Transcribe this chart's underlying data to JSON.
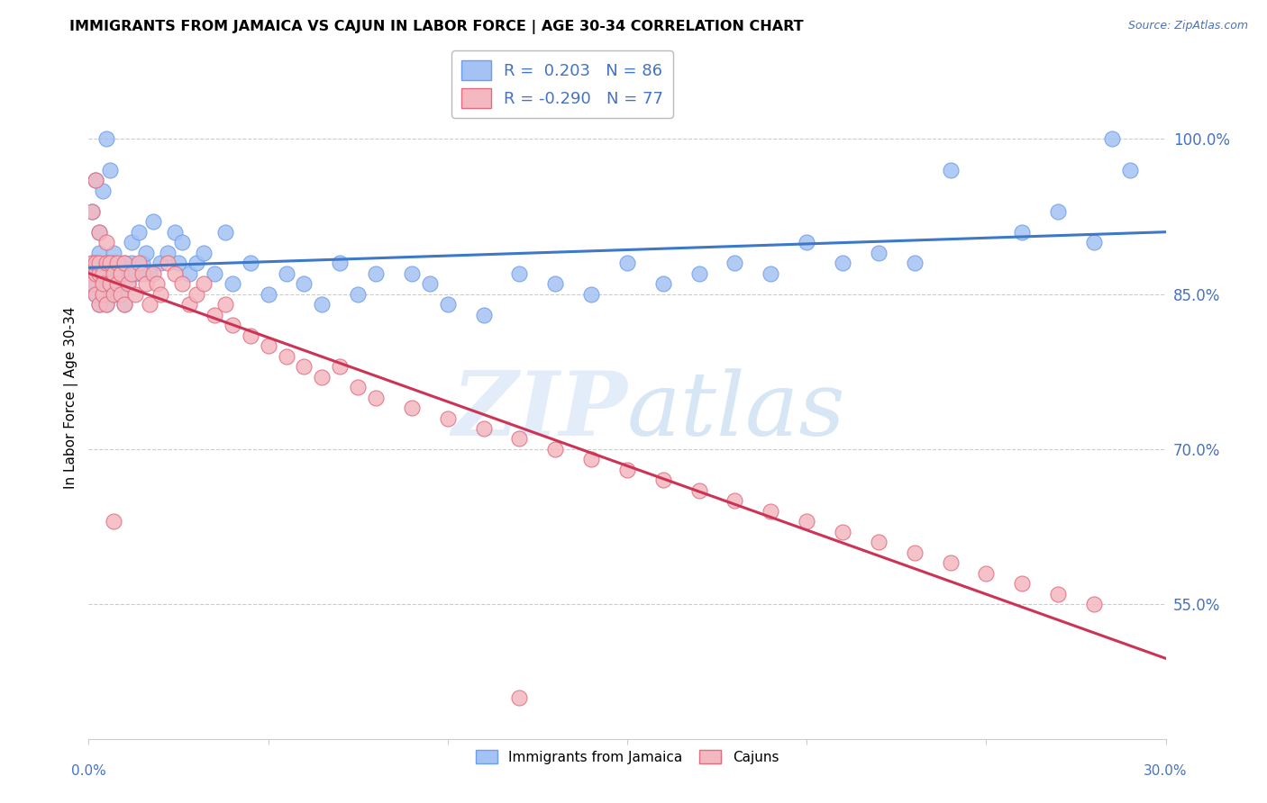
{
  "title": "IMMIGRANTS FROM JAMAICA VS CAJUN IN LABOR FORCE | AGE 30-34 CORRELATION CHART",
  "source": "Source: ZipAtlas.com",
  "ylabel": "In Labor Force | Age 30-34",
  "legend_jamaica": "Immigrants from Jamaica",
  "legend_cajun": "Cajuns",
  "r_jamaica": 0.203,
  "n_jamaica": 86,
  "r_cajun": -0.29,
  "n_cajun": 77,
  "color_jamaica": "#a4c2f4",
  "color_cajun": "#f4b8c1",
  "color_jamaica_edge": "#6d9eeb",
  "color_cajun_edge": "#e06c7d",
  "color_jamaica_line": "#3d78c9",
  "color_cajun_line": "#cc3355",
  "axis_color": "#4472c4",
  "watermark_color": "#c9ddf5",
  "background_color": "#ffffff",
  "grid_color": "#cccccc",
  "xlim": [
    0.0,
    0.3
  ],
  "ylim": [
    0.42,
    1.08
  ],
  "y_ticks": [
    0.55,
    0.7,
    0.85,
    1.0
  ],
  "y_tick_labels": [
    "55.0%",
    "70.0%",
    "85.0%",
    "100.0%"
  ],
  "jamaica_x": [
    0.001,
    0.001,
    0.001,
    0.002,
    0.002,
    0.002,
    0.002,
    0.003,
    0.003,
    0.003,
    0.003,
    0.004,
    0.004,
    0.004,
    0.005,
    0.005,
    0.005,
    0.006,
    0.006,
    0.006,
    0.007,
    0.007,
    0.007,
    0.008,
    0.008,
    0.009,
    0.009,
    0.01,
    0.01,
    0.01,
    0.011,
    0.012,
    0.012,
    0.013,
    0.014,
    0.015,
    0.016,
    0.017,
    0.018,
    0.02,
    0.022,
    0.024,
    0.025,
    0.026,
    0.028,
    0.03,
    0.032,
    0.035,
    0.038,
    0.04,
    0.045,
    0.05,
    0.055,
    0.06,
    0.065,
    0.07,
    0.075,
    0.08,
    0.09,
    0.095,
    0.1,
    0.11,
    0.12,
    0.13,
    0.14,
    0.15,
    0.16,
    0.17,
    0.18,
    0.19,
    0.2,
    0.21,
    0.22,
    0.23,
    0.24,
    0.26,
    0.27,
    0.28,
    0.285,
    0.29,
    0.001,
    0.002,
    0.003,
    0.004,
    0.005,
    0.006
  ],
  "jamaica_y": [
    0.87,
    0.86,
    0.88,
    0.85,
    0.86,
    0.87,
    0.88,
    0.84,
    0.87,
    0.88,
    0.89,
    0.85,
    0.87,
    0.86,
    0.84,
    0.87,
    0.88,
    0.86,
    0.88,
    0.87,
    0.85,
    0.89,
    0.88,
    0.86,
    0.87,
    0.85,
    0.87,
    0.84,
    0.87,
    0.88,
    0.86,
    0.9,
    0.88,
    0.87,
    0.91,
    0.88,
    0.89,
    0.87,
    0.92,
    0.88,
    0.89,
    0.91,
    0.88,
    0.9,
    0.87,
    0.88,
    0.89,
    0.87,
    0.91,
    0.86,
    0.88,
    0.85,
    0.87,
    0.86,
    0.84,
    0.88,
    0.85,
    0.87,
    0.87,
    0.86,
    0.84,
    0.83,
    0.87,
    0.86,
    0.85,
    0.88,
    0.86,
    0.87,
    0.88,
    0.87,
    0.9,
    0.88,
    0.89,
    0.88,
    0.97,
    0.91,
    0.93,
    0.9,
    1.0,
    0.97,
    0.93,
    0.96,
    0.91,
    0.95,
    1.0,
    0.97
  ],
  "cajun_x": [
    0.001,
    0.001,
    0.001,
    0.002,
    0.002,
    0.002,
    0.003,
    0.003,
    0.003,
    0.004,
    0.004,
    0.004,
    0.005,
    0.005,
    0.006,
    0.006,
    0.007,
    0.007,
    0.008,
    0.008,
    0.009,
    0.009,
    0.01,
    0.01,
    0.011,
    0.012,
    0.013,
    0.014,
    0.015,
    0.016,
    0.017,
    0.018,
    0.019,
    0.02,
    0.022,
    0.024,
    0.026,
    0.028,
    0.03,
    0.032,
    0.035,
    0.038,
    0.04,
    0.045,
    0.05,
    0.055,
    0.06,
    0.065,
    0.07,
    0.075,
    0.08,
    0.09,
    0.1,
    0.11,
    0.12,
    0.13,
    0.14,
    0.15,
    0.16,
    0.17,
    0.18,
    0.19,
    0.2,
    0.21,
    0.22,
    0.23,
    0.24,
    0.25,
    0.26,
    0.27,
    0.28,
    0.001,
    0.003,
    0.005,
    0.002,
    0.007,
    0.12
  ],
  "cajun_y": [
    0.87,
    0.86,
    0.88,
    0.85,
    0.87,
    0.88,
    0.84,
    0.87,
    0.88,
    0.85,
    0.87,
    0.86,
    0.84,
    0.88,
    0.86,
    0.88,
    0.85,
    0.87,
    0.86,
    0.88,
    0.85,
    0.87,
    0.84,
    0.88,
    0.86,
    0.87,
    0.85,
    0.88,
    0.87,
    0.86,
    0.84,
    0.87,
    0.86,
    0.85,
    0.88,
    0.87,
    0.86,
    0.84,
    0.85,
    0.86,
    0.83,
    0.84,
    0.82,
    0.81,
    0.8,
    0.79,
    0.78,
    0.77,
    0.78,
    0.76,
    0.75,
    0.74,
    0.73,
    0.72,
    0.71,
    0.7,
    0.69,
    0.68,
    0.67,
    0.66,
    0.65,
    0.64,
    0.63,
    0.62,
    0.61,
    0.6,
    0.59,
    0.58,
    0.57,
    0.56,
    0.55,
    0.93,
    0.91,
    0.9,
    0.96,
    0.63,
    0.46
  ]
}
